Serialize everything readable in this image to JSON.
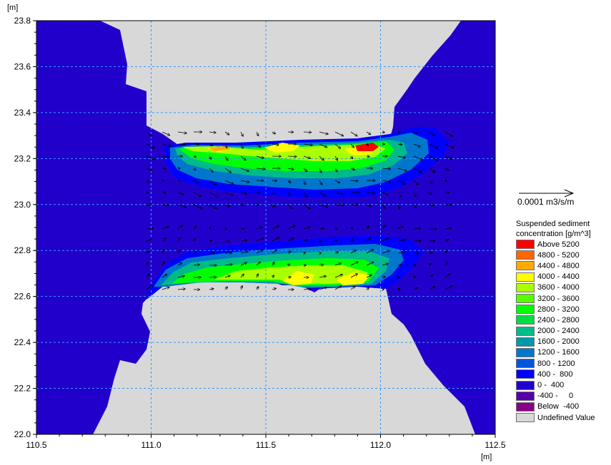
{
  "chart_data": {
    "type": "heatmap",
    "x_unit": "[m]",
    "y_unit": "[m]",
    "xlim": [
      110.5,
      112.5
    ],
    "ylim": [
      22.0,
      23.8
    ],
    "x_ticks": [
      "110.5",
      "111.0",
      "111.5",
      "112.0",
      "112.5"
    ],
    "y_ticks": [
      "22.0",
      "22.2",
      "22.4",
      "22.6",
      "22.8",
      "23.0",
      "23.2",
      "23.4",
      "23.6",
      "23.8"
    ],
    "grid": true,
    "vector_scale_label": "0.0001 m3/s/m",
    "legend_title": "Suspended sediment concentration [g/m^3]",
    "legend": [
      {
        "label": "Above 5200",
        "color": "#ff0000"
      },
      {
        "label": "4800 - 5200",
        "color": "#ff6600"
      },
      {
        "label": "4400 - 4800",
        "color": "#ffaa00"
      },
      {
        "label": "4000 - 4400",
        "color": "#ffff00"
      },
      {
        "label": "3600 - 4000",
        "color": "#aaff00"
      },
      {
        "label": "3200 - 3600",
        "color": "#55ff00"
      },
      {
        "label": "2800 - 3200",
        "color": "#00ff00"
      },
      {
        "label": "2400 - 2800",
        "color": "#00dd44"
      },
      {
        "label": "2000 - 2400",
        "color": "#00bb88"
      },
      {
        "label": "1600 - 2000",
        "color": "#0099aa"
      },
      {
        "label": "1200 - 1600",
        "color": "#0077cc"
      },
      {
        "label": "800 - 1200",
        "color": "#0055dd"
      },
      {
        "label": "400 -  800",
        "color": "#0000ff"
      },
      {
        "label": "0 -  400",
        "color": "#2200cc"
      },
      {
        "label": "-400 -     0",
        "color": "#5500aa"
      },
      {
        "label": "Below  -400",
        "color": "#880088"
      },
      {
        "label": "Undefined Value",
        "color": "#d8d8d8"
      }
    ],
    "colors": {
      "water": "#2200cc",
      "land": "#d8d8d8",
      "grid": "#3399ff"
    }
  }
}
